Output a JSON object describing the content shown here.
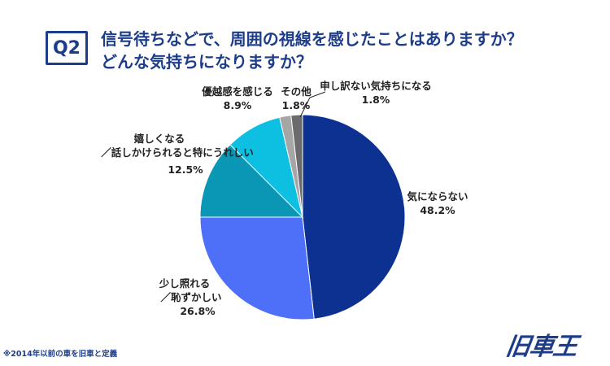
{
  "question_badge": "Q2",
  "title_line1": "信号待ちなどで、周囲の視線を感じたことはありますか？",
  "title_line2": "どんな気持ちになりますか？",
  "chart_data": {
    "type": "pie",
    "slices": [
      {
        "name": "気にならない",
        "label_lines": [
          "気にならない"
        ],
        "value": 48.2,
        "value_label": "48.2%",
        "color": "#0d3190"
      },
      {
        "name": "少し照れる／恥ずかしい",
        "label_lines": [
          "少し照れる",
          "／恥ずかしい"
        ],
        "value": 26.8,
        "value_label": "26.8%",
        "color": "#4e70f8"
      },
      {
        "name": "嬉しくなる／話しかけられると特にうれしい",
        "label_lines": [
          "嬉しくなる",
          "／話しかけられると特にうれしい"
        ],
        "value": 12.5,
        "value_label": "12.5%",
        "color": "#0a96b5"
      },
      {
        "name": "優越感を感じる",
        "label_lines": [
          "優越感を感じる"
        ],
        "value": 8.9,
        "value_label": "8.9%",
        "color": "#0dbfe0"
      },
      {
        "name": "その他",
        "label_lines": [
          "その他"
        ],
        "value": 1.8,
        "value_label": "1.8%",
        "color": "#a6a6a6"
      },
      {
        "name": "申し訳ない気持ちになる",
        "label_lines": [
          "申し訳ない気持ちになる"
        ],
        "value": 1.8,
        "value_label": "1.8%",
        "color": "#6b6b6b"
      }
    ]
  },
  "footnote": "※2014年以前の車を旧車と定義",
  "logo_text": "旧車王"
}
